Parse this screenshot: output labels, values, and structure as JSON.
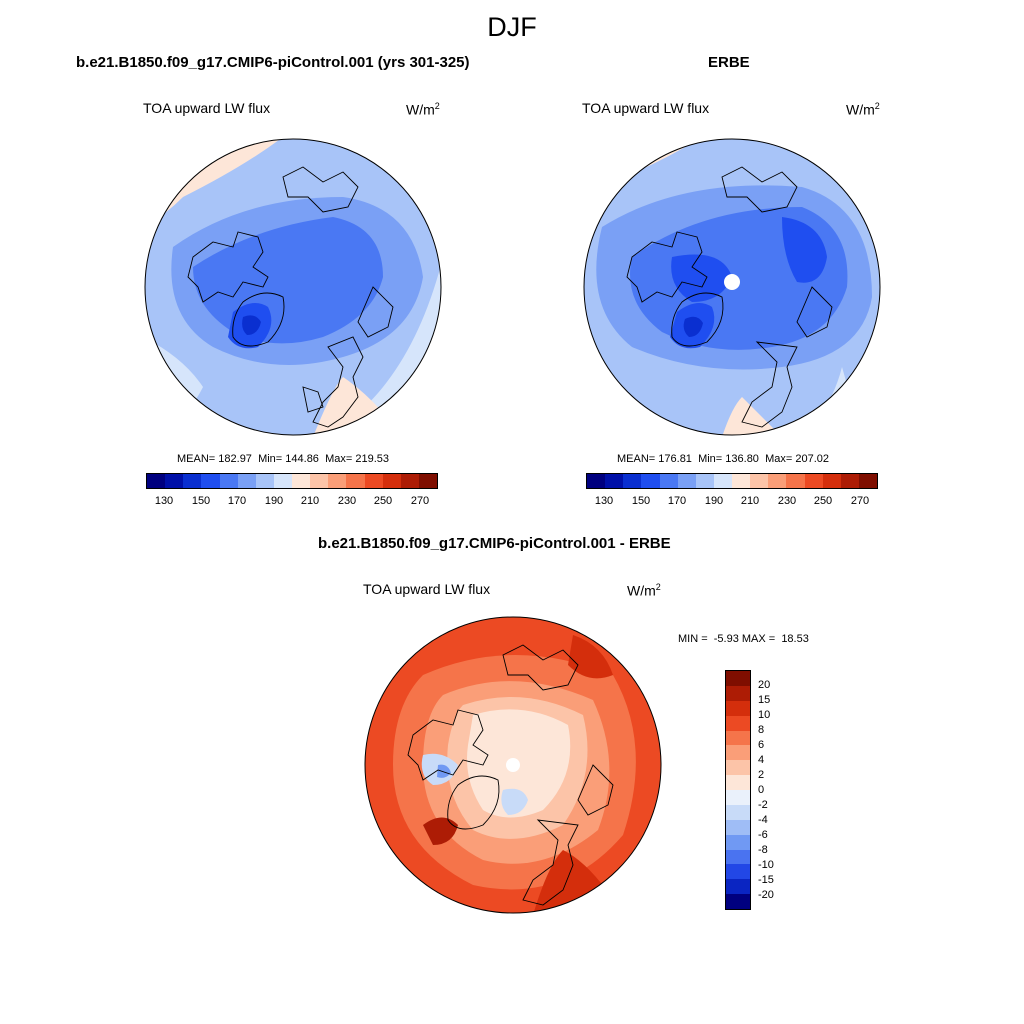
{
  "season": "DJF",
  "panels": [
    {
      "title": "b.e21.B1850.f09_g17.CMIP6-piControl.001 (yrs 301-325)",
      "variable": "TOA upward LW flux",
      "units": "W/m",
      "units_exp": "2",
      "mean_label": "MEAN=",
      "mean": "182.97",
      "min_label": "Min=",
      "min": "144.86",
      "max_label": "Max=",
      "max": "219.53"
    },
    {
      "title": "ERBE",
      "variable": "TOA upward LW flux",
      "units": "W/m",
      "units_exp": "2",
      "mean_label": "MEAN=",
      "mean": "176.81",
      "min_label": "Min=",
      "min": "136.80",
      "max_label": "Max=",
      "max": "207.02"
    }
  ],
  "abs_colorbar": {
    "tick_labels": [
      "130",
      "150",
      "170",
      "190",
      "210",
      "230",
      "250",
      "270"
    ],
    "colors": [
      "#00007f",
      "#0010a8",
      "#0a2fd0",
      "#1f4ef0",
      "#4a78f3",
      "#7aa0f5",
      "#a8c4f8",
      "#d6e5fb",
      "#fde6d8",
      "#fcc4a8",
      "#fa9e78",
      "#f5744a",
      "#ec4a23",
      "#d42e0c",
      "#ad1c05",
      "#7f0e00"
    ]
  },
  "diff_panel": {
    "title": "b.e21.B1850.f09_g17.CMIP6-piControl.001 - ERBE",
    "variable": "TOA upward LW flux",
    "units": "W/m",
    "units_exp": "2",
    "stats": "MIN =  -5.93 MAX =  18.53",
    "colorbar_labels": [
      "20",
      "15",
      "10",
      "8",
      "6",
      "4",
      "2",
      "0",
      "-2",
      "-4",
      "-6",
      "-8",
      "-10",
      "-15",
      "-20"
    ],
    "colorbar_colors": [
      "#7f0e00",
      "#ad1c05",
      "#d42e0c",
      "#ec4a23",
      "#f5744a",
      "#fa9e78",
      "#fcc4a8",
      "#fde6d8",
      "#eaf1fb",
      "#c8dbf8",
      "#9fbdf6",
      "#7099f3",
      "#4a73f0",
      "#2247e6",
      "#0a25c2",
      "#00007f"
    ]
  }
}
